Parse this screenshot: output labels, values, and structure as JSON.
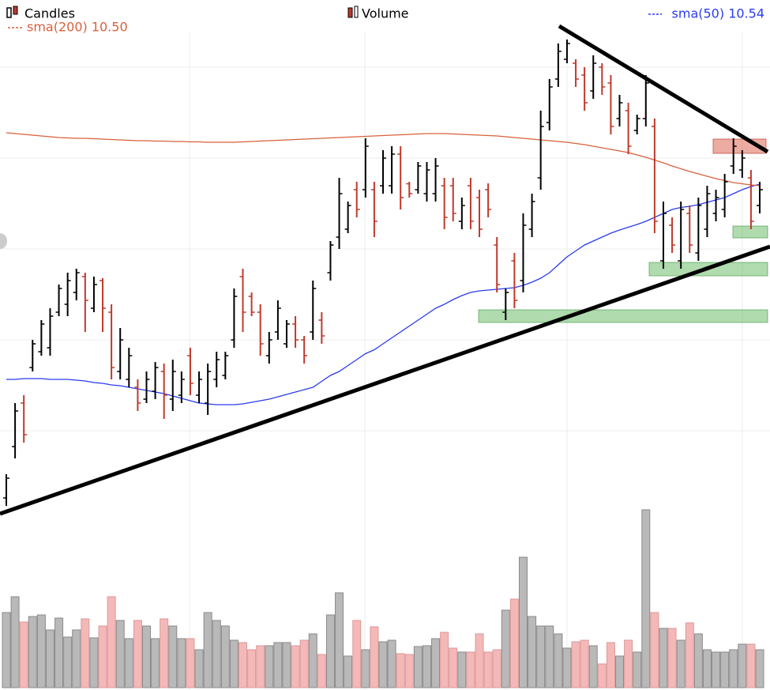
{
  "chart_data": {
    "type": "candlestick",
    "legend": "top",
    "ylim": [
      2.2,
      15.2
    ],
    "volume_ylim": [
      0,
      230
    ],
    "candles": {
      "name": "Candles",
      "up_color": "#000000",
      "down_color": "#c0392b",
      "open": [
        2.6,
        3.9,
        5.0,
        5.9,
        6.3,
        6.4,
        7.3,
        7.5,
        7.8,
        8.2,
        7.4,
        8.1,
        7.3,
        5.8,
        5.6,
        5.4,
        5.1,
        5.3,
        5.8,
        5.1,
        5.2,
        6.2,
        5.2,
        5.0,
        5.6,
        5.7,
        6.6,
        8.2,
        7.7,
        7.3,
        6.2,
        6.8,
        6.5,
        7.0,
        6.6,
        6.8,
        7.1,
        8.3,
        9.2,
        9.4,
        10.4,
        10.4,
        10.4,
        10.5,
        10.5,
        11.3,
        10.55,
        10.4,
        10.3,
        10.3,
        10.5,
        10.5,
        9.6,
        10.5,
        10.2,
        10.4,
        9.0,
        7.3,
        8.6,
        8.1,
        9.4,
        10.7,
        12.1,
        13.2,
        13.7,
        13.6,
        13.3,
        12.9,
        13.5,
        13.1,
        12.2,
        12.4,
        11.9,
        12.2,
        12.0,
        8.6,
        9.5,
        8.6,
        9.8,
        8.8,
        9.4,
        9.8,
        9.9,
        11.0,
        10.9,
        10.7,
        10.0
      ],
      "high": [
        3.2,
        5.0,
        5.2,
        6.6,
        7.1,
        7.4,
        8.0,
        8.3,
        8.4,
        8.3,
        8.2,
        8.16,
        7.5,
        6.9,
        6.4,
        5.6,
        5.8,
        6.04,
        6.0,
        6.1,
        5.8,
        6.4,
        5.8,
        6.0,
        6.3,
        6.3,
        7.9,
        8.4,
        7.8,
        7.5,
        6.8,
        7.6,
        7.1,
        7.2,
        6.7,
        8.1,
        7.3,
        9.1,
        10.7,
        10.1,
        10.6,
        11.7,
        10.6,
        11.4,
        11.5,
        11.5,
        10.6,
        11.1,
        11.1,
        11.2,
        10.7,
        10.7,
        10.2,
        10.7,
        10.4,
        10.56,
        9.2,
        7.9,
        8.8,
        9.8,
        10.3,
        12.4,
        13.2,
        14.1,
        14.2,
        13.7,
        13.5,
        13.8,
        13.6,
        13.3,
        12.8,
        12.6,
        12.3,
        13.3,
        12.2,
        10.1,
        9.7,
        10.1,
        10.0,
        10.2,
        10.5,
        10.4,
        10.8,
        11.7,
        11.4,
        10.9,
        10.6
      ],
      "low": [
        2.4,
        3.6,
        4.0,
        5.8,
        6.2,
        6.2,
        7.2,
        7.2,
        7.6,
        6.8,
        7.3,
        6.8,
        5.6,
        5.6,
        5.4,
        4.8,
        5.0,
        5.1,
        4.6,
        4.8,
        5.0,
        5.2,
        5.0,
        4.7,
        5.4,
        5.6,
        6.4,
        6.8,
        7.2,
        6.2,
        6.0,
        6.6,
        6.4,
        6.4,
        6.0,
        6.6,
        6.5,
        8.1,
        8.9,
        9.3,
        9.7,
        10.2,
        9.2,
        10.3,
        10.3,
        9.9,
        10.2,
        10.3,
        10.1,
        10.1,
        9.4,
        9.6,
        9.4,
        9.4,
        9.2,
        9.7,
        7.8,
        7.1,
        7.4,
        7.8,
        9.2,
        10.4,
        11.9,
        13.0,
        13.6,
        13.0,
        12.4,
        12.7,
        12.8,
        11.8,
        12.0,
        11.3,
        11.8,
        12.0,
        9.3,
        8.4,
        8.8,
        8.4,
        8.8,
        8.6,
        9.2,
        9.6,
        9.7,
        10.8,
        10.7,
        9.4,
        9.8
      ],
      "close": [
        3.1,
        4.8,
        4.2,
        6.5,
        7.0,
        7.2,
        7.9,
        8.1,
        8.3,
        7.6,
        8.0,
        7.4,
        5.9,
        6.6,
        6.2,
        5.0,
        5.6,
        5.9,
        5.2,
        5.8,
        5.6,
        5.5,
        5.6,
        5.8,
        6.1,
        6.2,
        7.7,
        7.3,
        7.3,
        6.5,
        6.6,
        7.4,
        7.0,
        6.6,
        6.2,
        7.9,
        6.7,
        9.0,
        10.3,
        10.0,
        9.9,
        11.5,
        9.6,
        11.2,
        11.3,
        10.2,
        10.3,
        11.0,
        10.9,
        11.0,
        9.7,
        9.8,
        10.0,
        9.6,
        9.4,
        9.9,
        8.0,
        7.8,
        7.6,
        9.5,
        10.1,
        12.0,
        13.0,
        13.9,
        14.1,
        13.2,
        12.6,
        13.6,
        13.0,
        12.0,
        12.6,
        11.5,
        12.2,
        13.1,
        9.6,
        9.8,
        9.0,
        9.9,
        9.0,
        10.0,
        10.3,
        10.2,
        10.6,
        11.5,
        11.2,
        9.6,
        10.4
      ]
    },
    "volume": {
      "name": "Volume",
      "up_color": "#b9b9b9",
      "down_color": "#f4b8b8",
      "values": [
        95,
        115,
        83,
        90,
        92,
        73,
        88,
        64,
        73,
        87,
        63,
        78,
        115,
        85,
        62,
        85,
        78,
        62,
        87,
        78,
        62,
        62,
        48,
        95,
        85,
        78,
        60,
        57,
        48,
        53,
        53,
        57,
        57,
        53,
        60,
        68,
        42,
        92,
        120,
        40,
        85,
        48,
        77,
        58,
        60,
        43,
        42,
        52,
        53,
        62,
        70,
        50,
        45,
        45,
        68,
        45,
        48,
        98,
        112,
        165,
        90,
        78,
        78,
        68,
        50,
        58,
        60,
        53,
        30,
        57,
        40,
        60,
        45,
        225,
        95,
        75,
        75,
        60,
        82,
        68,
        48,
        45,
        45,
        48,
        55,
        55,
        48
      ]
    },
    "series": [
      {
        "name": "sma(50) 10.54",
        "color": "#2b3bef",
        "values": [
          5.6,
          5.6,
          5.62,
          5.62,
          5.62,
          5.6,
          5.6,
          5.6,
          5.58,
          5.56,
          5.52,
          5.5,
          5.46,
          5.44,
          5.4,
          5.36,
          5.32,
          5.28,
          5.24,
          5.18,
          5.12,
          5.06,
          5.0,
          4.98,
          4.96,
          4.96,
          4.96,
          4.98,
          5.02,
          5.06,
          5.1,
          5.16,
          5.22,
          5.28,
          5.34,
          5.4,
          5.55,
          5.7,
          5.8,
          5.95,
          6.1,
          6.25,
          6.35,
          6.5,
          6.65,
          6.8,
          6.95,
          7.1,
          7.25,
          7.4,
          7.5,
          7.62,
          7.72,
          7.8,
          7.84,
          7.86,
          7.88,
          7.9,
          7.92,
          7.98,
          8.06,
          8.16,
          8.3,
          8.5,
          8.7,
          8.85,
          9.0,
          9.1,
          9.2,
          9.3,
          9.38,
          9.45,
          9.52,
          9.6,
          9.7,
          9.8,
          9.9,
          9.95,
          9.98,
          10.02,
          10.08,
          10.14,
          10.2,
          10.3,
          10.4,
          10.48,
          10.54
        ]
      },
      {
        "name": "sma(200) 10.50",
        "color": "#d9603b",
        "values": [
          11.84,
          11.82,
          11.8,
          11.78,
          11.76,
          11.74,
          11.72,
          11.71,
          11.7,
          11.7,
          11.69,
          11.68,
          11.67,
          11.66,
          11.65,
          11.64,
          11.64,
          11.63,
          11.63,
          11.62,
          11.62,
          11.61,
          11.61,
          11.6,
          11.6,
          11.6,
          11.6,
          11.61,
          11.62,
          11.63,
          11.64,
          11.65,
          11.66,
          11.67,
          11.68,
          11.69,
          11.7,
          11.71,
          11.72,
          11.73,
          11.74,
          11.75,
          11.76,
          11.77,
          11.78,
          11.79,
          11.8,
          11.81,
          11.82,
          11.82,
          11.82,
          11.81,
          11.8,
          11.79,
          11.78,
          11.77,
          11.76,
          11.74,
          11.72,
          11.7,
          11.68,
          11.66,
          11.64,
          11.62,
          11.6,
          11.57,
          11.54,
          11.5,
          11.46,
          11.42,
          11.38,
          11.34,
          11.28,
          11.22,
          11.15,
          11.08,
          11.0,
          10.93,
          10.86,
          10.8,
          10.74,
          10.68,
          10.63,
          10.58,
          10.55,
          10.52,
          10.5
        ]
      }
    ]
  }
}
